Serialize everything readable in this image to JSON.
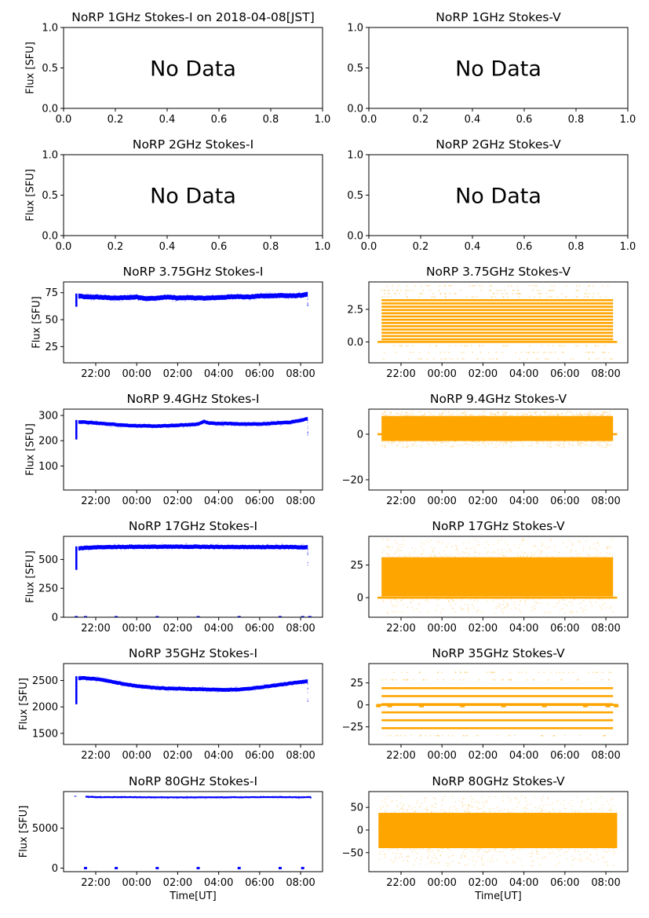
{
  "figure": {
    "xlabel_time": "Time[UT]",
    "ylabel": "Flux [SFU]",
    "no_data_text": "No Data"
  },
  "chart_data": [
    {
      "type": "scatter",
      "title": "NoRP 1GHz Stokes-I on 2018-04-08[JST]",
      "ylabel": "Flux [SFU]",
      "xlabel": "",
      "has_data": false,
      "xlim": [
        0,
        1
      ],
      "ylim": [
        0,
        1
      ],
      "xticks": [
        "0.0",
        "0.2",
        "0.4",
        "0.6",
        "0.8",
        "1.0"
      ],
      "xtick_values": [
        0,
        0.2,
        0.4,
        0.6,
        0.8,
        1.0
      ],
      "yticks": [
        "0.0",
        "0.5",
        "1.0"
      ],
      "ytick_values": [
        0,
        0.5,
        1.0
      ],
      "annotation": "No Data"
    },
    {
      "type": "scatter",
      "title": "NoRP 1GHz Stokes-V",
      "ylabel": "",
      "xlabel": "",
      "has_data": false,
      "xlim": [
        0,
        1
      ],
      "ylim": [
        0,
        1
      ],
      "xticks": [
        "0.0",
        "0.2",
        "0.4",
        "0.6",
        "0.8",
        "1.0"
      ],
      "xtick_values": [
        0,
        0.2,
        0.4,
        0.6,
        0.8,
        1.0
      ],
      "yticks": [
        "0.0",
        "0.5",
        "1.0"
      ],
      "ytick_values": [
        0,
        0.5,
        1.0
      ],
      "annotation": "No Data"
    },
    {
      "type": "scatter",
      "title": "NoRP 2GHz Stokes-I",
      "ylabel": "Flux [SFU]",
      "xlabel": "",
      "has_data": false,
      "xlim": [
        0,
        1
      ],
      "ylim": [
        0,
        1
      ],
      "xticks": [
        "0.0",
        "0.2",
        "0.4",
        "0.6",
        "0.8",
        "1.0"
      ],
      "xtick_values": [
        0,
        0.2,
        0.4,
        0.6,
        0.8,
        1.0
      ],
      "yticks": [
        "0.0",
        "0.5",
        "1.0"
      ],
      "ytick_values": [
        0,
        0.5,
        1.0
      ],
      "annotation": "No Data"
    },
    {
      "type": "scatter",
      "title": "NoRP 2GHz Stokes-V",
      "ylabel": "",
      "xlabel": "",
      "has_data": false,
      "xlim": [
        0,
        1
      ],
      "ylim": [
        0,
        1
      ],
      "xticks": [
        "0.0",
        "0.2",
        "0.4",
        "0.6",
        "0.8",
        "1.0"
      ],
      "xtick_values": [
        0,
        0.2,
        0.4,
        0.6,
        0.8,
        1.0
      ],
      "yticks": [
        "0.0",
        "0.5",
        "1.0"
      ],
      "ytick_values": [
        0,
        0.5,
        1.0
      ],
      "annotation": "No Data"
    },
    {
      "type": "scatter",
      "title": "NoRP 3.75GHz Stokes-I",
      "ylabel": "Flux [SFU]",
      "xlabel": "",
      "has_data": true,
      "color": "#0000ff",
      "kind": "I",
      "xlim_hours": [
        20.43,
        33.07
      ],
      "ylim": [
        10,
        85
      ],
      "xticks": [
        "22:00",
        "00:00",
        "02:00",
        "04:00",
        "06:00",
        "08:00"
      ],
      "xtick_values": [
        22,
        24,
        26,
        28,
        30,
        32
      ],
      "yticks": [
        "25",
        "50",
        "75"
      ],
      "ytick_values": [
        25,
        50,
        75
      ],
      "x_hours": [
        21.05,
        21.15,
        21.5,
        22,
        22.5,
        23,
        23.5,
        24,
        24.5,
        25,
        25.5,
        26,
        26.5,
        27,
        27.5,
        28,
        28.5,
        29,
        29.5,
        30,
        30.5,
        31,
        31.5,
        32,
        32.35
      ],
      "y": [
        62,
        72,
        71,
        71,
        70.5,
        70,
        70.5,
        71,
        69.5,
        70,
        71,
        70,
        70.5,
        70,
        70,
        70.5,
        71,
        71.5,
        71,
        72,
        72,
        72.5,
        72,
        72.5,
        73.5
      ],
      "band_halfwidth": 2.2
    },
    {
      "type": "scatter",
      "title": "NoRP 3.75GHz Stokes-V",
      "ylabel": "",
      "xlabel": "",
      "has_data": true,
      "color": "#ffa500",
      "kind": "V-levels",
      "xlim_hours": [
        20.43,
        33.07
      ],
      "ylim": [
        -1.6,
        4.6
      ],
      "xticks": [
        "22:00",
        "00:00",
        "02:00",
        "04:00",
        "06:00",
        "08:00"
      ],
      "xtick_values": [
        22,
        24,
        26,
        28,
        30,
        32
      ],
      "yticks": [
        "0.0",
        "2.5"
      ],
      "ytick_values": [
        0,
        2.5
      ],
      "levels": [
        0.2,
        0.45,
        0.7,
        0.95,
        1.2,
        1.45,
        1.7,
        1.95,
        2.2,
        2.45,
        2.7,
        2.95,
        3.2
      ],
      "sparse_levels": [
        -1.3,
        -0.8,
        -0.3,
        3.45,
        3.7,
        3.95,
        4.3
      ],
      "x_range_hours": [
        21.05,
        32.35
      ],
      "zero_line_range_hours": [
        20.85,
        32.55
      ]
    },
    {
      "type": "scatter",
      "title": "NoRP 9.4GHz Stokes-I",
      "ylabel": "Flux [SFU]",
      "xlabel": "",
      "has_data": true,
      "color": "#0000ff",
      "kind": "I",
      "xlim_hours": [
        20.43,
        33.07
      ],
      "ylim": [
        5,
        325
      ],
      "xticks": [
        "22:00",
        "00:00",
        "02:00",
        "04:00",
        "06:00",
        "08:00"
      ],
      "xtick_values": [
        22,
        24,
        26,
        28,
        30,
        32
      ],
      "yticks": [
        "100",
        "200",
        "300"
      ],
      "ytick_values": [
        100,
        200,
        300
      ],
      "x_hours": [
        21.05,
        21.15,
        21.5,
        22,
        22.5,
        23,
        23.5,
        24,
        24.5,
        25,
        25.5,
        26,
        26.5,
        27,
        27.3,
        27.5,
        28,
        28.5,
        29,
        29.5,
        30,
        30.5,
        31,
        31.5,
        32,
        32.35
      ],
      "y": [
        205,
        275,
        273,
        270,
        267,
        264,
        261,
        259,
        258,
        258,
        259,
        261,
        263,
        266,
        276,
        270,
        268,
        268,
        266,
        266,
        266,
        268,
        271,
        273,
        281,
        287
      ],
      "band_halfwidth": 7
    },
    {
      "type": "scatter",
      "title": "NoRP 9.4GHz Stokes-V",
      "ylabel": "",
      "xlabel": "",
      "has_data": true,
      "color": "#ffa500",
      "kind": "V-band",
      "xlim_hours": [
        20.43,
        33.07
      ],
      "ylim": [
        -24.5,
        11
      ],
      "xticks": [
        "22:00",
        "00:00",
        "02:00",
        "04:00",
        "06:00",
        "08:00"
      ],
      "xtick_values": [
        22,
        24,
        26,
        28,
        30,
        32
      ],
      "yticks": [
        "−20",
        "0"
      ],
      "ytick_values": [
        -20,
        0
      ],
      "band": [
        -3,
        8
      ],
      "scatter_spread": [
        -6,
        10
      ],
      "x_range_hours": [
        21.05,
        32.35
      ],
      "zero_line_range_hours": [
        20.85,
        32.55
      ]
    },
    {
      "type": "scatter",
      "title": "NoRP 17GHz Stokes-I",
      "ylabel": "Flux [SFU]",
      "xlabel": "",
      "has_data": true,
      "color": "#0000ff",
      "kind": "I",
      "xlim_hours": [
        20.43,
        33.07
      ],
      "ylim": [
        0,
        700
      ],
      "xticks": [
        "22:00",
        "00:00",
        "02:00",
        "04:00",
        "06:00",
        "08:00"
      ],
      "xtick_values": [
        22,
        24,
        26,
        28,
        30,
        32
      ],
      "yticks": [
        "0",
        "250",
        "500"
      ],
      "ytick_values": [
        0,
        250,
        500
      ],
      "x_hours": [
        21.05,
        21.15,
        21.5,
        22,
        23,
        24,
        25,
        26,
        27,
        28,
        29,
        30,
        31,
        32,
        32.35
      ],
      "y": [
        410,
        595,
        600,
        605,
        608,
        610,
        610,
        610,
        610,
        608,
        608,
        608,
        608,
        606,
        605
      ],
      "band_halfwidth": 18,
      "zero_markers_hours": [
        21.05,
        21.5,
        23,
        25,
        27,
        29,
        31,
        32.1,
        32.45
      ]
    },
    {
      "type": "scatter",
      "title": "NoRP 17GHz Stokes-V",
      "ylabel": "",
      "xlabel": "",
      "has_data": true,
      "color": "#ffa500",
      "kind": "V-band",
      "xlim_hours": [
        20.43,
        33.07
      ],
      "ylim": [
        -15,
        47
      ],
      "xticks": [
        "22:00",
        "00:00",
        "02:00",
        "04:00",
        "06:00",
        "08:00"
      ],
      "xtick_values": [
        22,
        24,
        26,
        28,
        30,
        32
      ],
      "yticks": [
        "0",
        "25"
      ],
      "ytick_values": [
        0,
        25
      ],
      "band": [
        1,
        31
      ],
      "scatter_spread": [
        -12,
        45
      ],
      "x_range_hours": [
        21.05,
        32.35
      ],
      "zero_line_range_hours": [
        20.85,
        32.55
      ]
    },
    {
      "type": "scatter",
      "title": "NoRP 35GHz Stokes-I",
      "ylabel": "Flux [SFU]",
      "xlabel": "",
      "has_data": true,
      "color": "#0000ff",
      "kind": "I",
      "xlim_hours": [
        20.43,
        33.07
      ],
      "ylim": [
        1290,
        2820
      ],
      "xticks": [
        "22:00",
        "00:00",
        "02:00",
        "04:00",
        "06:00",
        "08:00"
      ],
      "xtick_values": [
        22,
        24,
        26,
        28,
        30,
        32
      ],
      "yticks": [
        "1500",
        "2000",
        "2500"
      ],
      "ytick_values": [
        1500,
        2000,
        2500
      ],
      "x_hours": [
        21.05,
        21.15,
        21.5,
        22,
        22.5,
        23,
        23.5,
        24,
        24.5,
        25,
        25.5,
        26,
        26.5,
        27,
        27.5,
        28,
        28.5,
        29,
        29.5,
        30,
        30.5,
        31,
        31.5,
        32,
        32.35
      ],
      "y": [
        2050,
        2545,
        2545,
        2530,
        2500,
        2460,
        2425,
        2395,
        2375,
        2360,
        2350,
        2345,
        2340,
        2335,
        2330,
        2325,
        2325,
        2330,
        2345,
        2370,
        2395,
        2420,
        2445,
        2470,
        2490
      ],
      "band_halfwidth": 35
    },
    {
      "type": "scatter",
      "title": "NoRP 35GHz Stokes-V",
      "ylabel": "",
      "xlabel": "",
      "has_data": true,
      "color": "#ffa500",
      "kind": "V-levels",
      "xlim_hours": [
        20.43,
        33.07
      ],
      "ylim": [
        -45,
        47
      ],
      "xticks": [
        "22:00",
        "00:00",
        "02:00",
        "04:00",
        "06:00",
        "08:00"
      ],
      "xtick_values": [
        22,
        24,
        26,
        28,
        30,
        32
      ],
      "yticks": [
        "−25",
        "0",
        "25"
      ],
      "ytick_values": [
        -25,
        0,
        25
      ],
      "levels": [
        -26.5,
        -17.5,
        -8.5,
        0.8,
        10,
        19
      ],
      "sparse_levels": [
        -35,
        28.5,
        37
      ],
      "zero_markers_hours": [
        20.9,
        21.45,
        23,
        25,
        27,
        29,
        31,
        32.1,
        32.5
      ],
      "x_range_hours": [
        21.05,
        32.35
      ],
      "zero_line_range_hours": [
        20.85,
        32.55
      ]
    },
    {
      "type": "scatter",
      "title": "NoRP 80GHz Stokes-I",
      "ylabel": "Flux [SFU]",
      "xlabel": "Time[UT]",
      "has_data": true,
      "color": "#0000ff",
      "kind": "I",
      "xlim_hours": [
        20.43,
        33.07
      ],
      "ylim": [
        -450,
        9600
      ],
      "xticks": [
        "22:00",
        "00:00",
        "02:00",
        "04:00",
        "06:00",
        "08:00"
      ],
      "xtick_values": [
        22,
        24,
        26,
        28,
        30,
        32
      ],
      "yticks": [
        "0",
        "5000"
      ],
      "ytick_values": [
        0,
        5000
      ],
      "x_hours": [
        21.0,
        21.5,
        22,
        23,
        24,
        25,
        26,
        27,
        28,
        29,
        30,
        31,
        32,
        32.5
      ],
      "y": [
        9000,
        8950,
        8900,
        8900,
        8900,
        8880,
        8870,
        8870,
        8880,
        8880,
        8900,
        8900,
        8880,
        8900
      ],
      "band_halfwidth": 110,
      "zero_markers_hours": [
        21.5,
        23,
        25,
        27,
        29,
        31,
        32.1
      ]
    },
    {
      "type": "scatter",
      "title": "NoRP 80GHz Stokes-V",
      "ylabel": "",
      "xlabel": "Time[UT]",
      "has_data": true,
      "color": "#ffa500",
      "kind": "V-band",
      "xlim_hours": [
        20.43,
        33.07
      ],
      "ylim": [
        -92,
        85
      ],
      "xticks": [
        "22:00",
        "00:00",
        "02:00",
        "04:00",
        "06:00",
        "08:00"
      ],
      "xtick_values": [
        22,
        24,
        26,
        28,
        30,
        32
      ],
      "yticks": [
        "−50",
        "0",
        "50"
      ],
      "ytick_values": [
        -50,
        0,
        50
      ],
      "band": [
        -40,
        38
      ],
      "scatter_spread": [
        -80,
        75
      ],
      "x_range_hours": [
        20.9,
        32.55
      ],
      "zero_line_range_hours": [
        20.9,
        32.55
      ]
    }
  ]
}
